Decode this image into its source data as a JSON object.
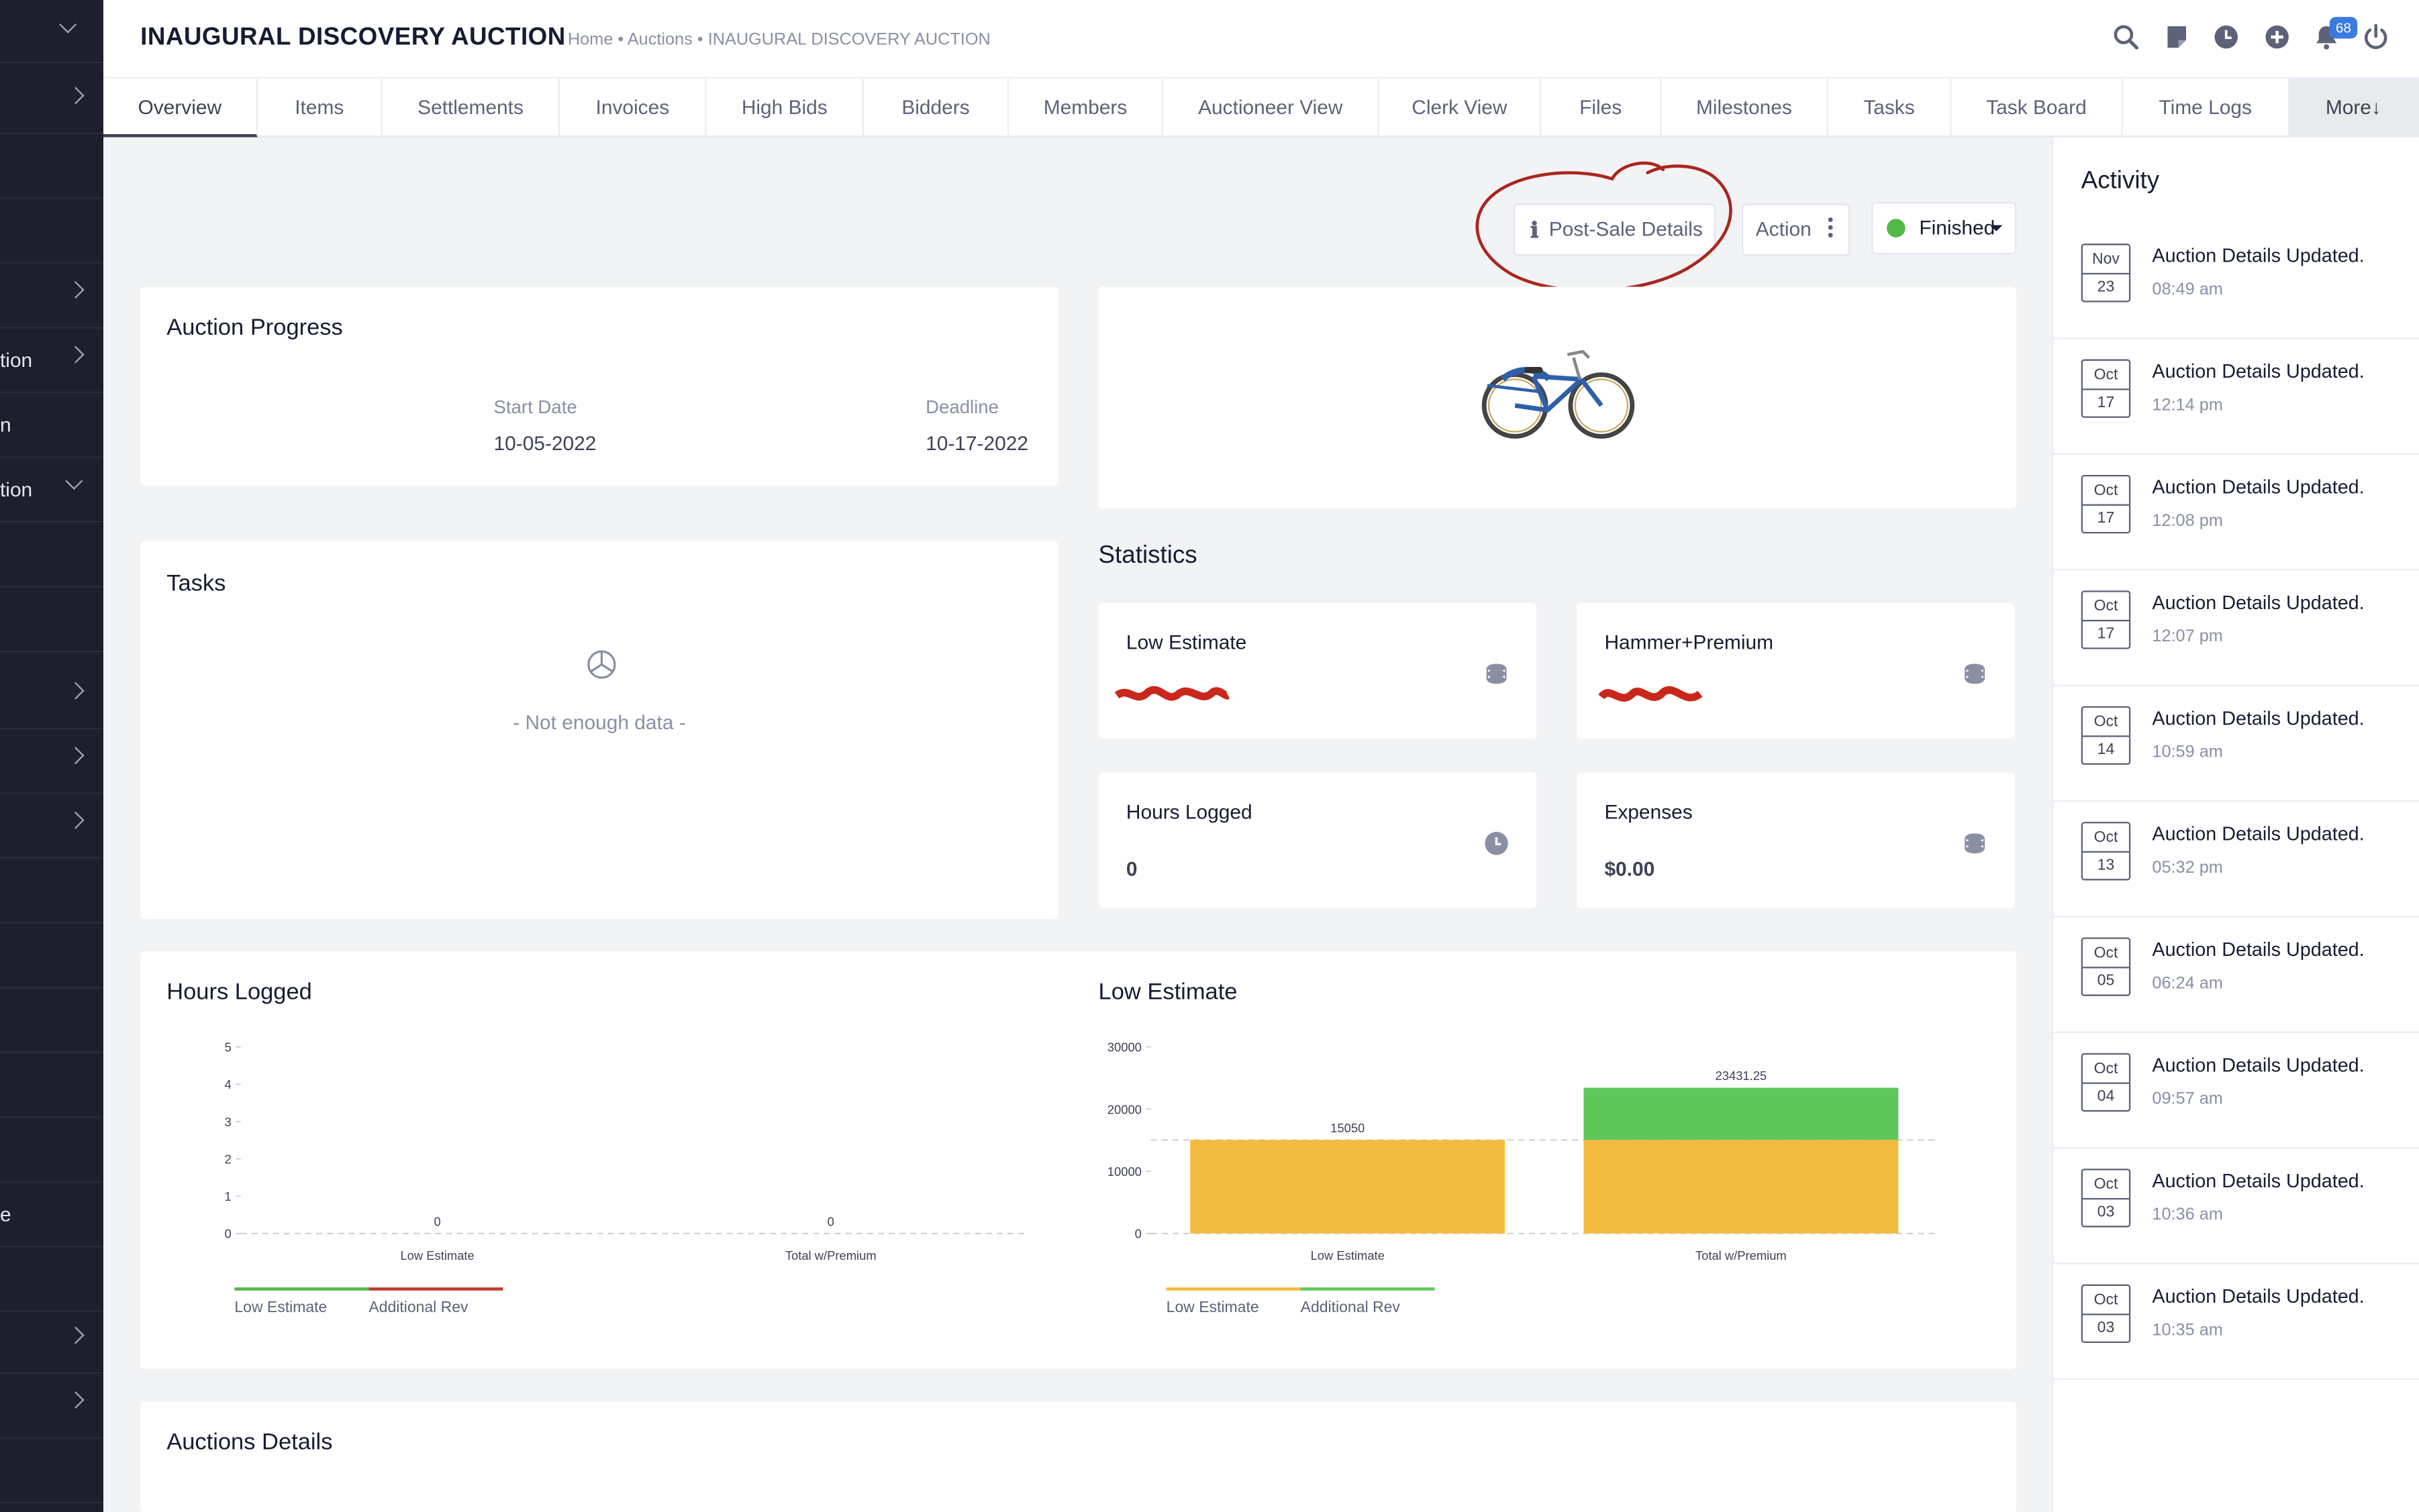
{
  "header": {
    "title": "INAUGURAL DISCOVERY AUCTION",
    "breadcrumb": [
      "Home",
      "Auctions",
      "INAUGURAL DISCOVERY AUCTION"
    ],
    "notification_count": "68"
  },
  "sidebar": {
    "items": [
      {
        "label": ""
      },
      {
        "label": ""
      },
      {
        "label": ""
      },
      {
        "label": "tion"
      },
      {
        "label": "n"
      },
      {
        "label": "tion"
      },
      {
        "label": "e"
      }
    ]
  },
  "tabs": [
    "Overview",
    "Items",
    "Settlements",
    "Invoices",
    "High Bids",
    "Bidders",
    "Members",
    "Auctioneer View",
    "Clerk View",
    "Files",
    "Milestones",
    "Tasks",
    "Task Board",
    "Time Logs",
    "More↓"
  ],
  "toolbar": {
    "post_sale": "Post-Sale Details",
    "action": "Action",
    "status": "Finished",
    "status_color": "#50b948"
  },
  "progress": {
    "title": "Auction Progress",
    "start_label": "Start Date",
    "start_value": "10-05-2022",
    "deadline_label": "Deadline",
    "deadline_value": "10-17-2022"
  },
  "tasks": {
    "title": "Tasks",
    "empty": "- Not enough data -"
  },
  "statistics": {
    "title": "Statistics",
    "low_estimate": "Low Estimate",
    "hammer_premium": "Hammer+Premium",
    "hours_logged": "Hours Logged",
    "hours_value": "0",
    "expenses": "Expenses",
    "expenses_value": "$0.00"
  },
  "activity": {
    "title": "Activity",
    "items": [
      {
        "month": "Nov",
        "day": "23",
        "msg": "Auction Details Updated.",
        "time": "08:49 am"
      },
      {
        "month": "Oct",
        "day": "17",
        "msg": "Auction Details Updated.",
        "time": "12:14 pm"
      },
      {
        "month": "Oct",
        "day": "17",
        "msg": "Auction Details Updated.",
        "time": "12:08 pm"
      },
      {
        "month": "Oct",
        "day": "17",
        "msg": "Auction Details Updated.",
        "time": "12:07 pm"
      },
      {
        "month": "Oct",
        "day": "14",
        "msg": "Auction Details Updated.",
        "time": "10:59 am"
      },
      {
        "month": "Oct",
        "day": "13",
        "msg": "Auction Details Updated.",
        "time": "05:32 pm"
      },
      {
        "month": "Oct",
        "day": "05",
        "msg": "Auction Details Updated.",
        "time": "06:24 am"
      },
      {
        "month": "Oct",
        "day": "04",
        "msg": "Auction Details Updated.",
        "time": "09:57 am"
      },
      {
        "month": "Oct",
        "day": "03",
        "msg": "Auction Details Updated.",
        "time": "10:36 am"
      },
      {
        "month": "Oct",
        "day": "03",
        "msg": "Auction Details Updated.",
        "time": "10:35 am"
      }
    ]
  },
  "details": {
    "title": "Auctions Details"
  },
  "chart_data": [
    {
      "type": "bar",
      "title": "Hours Logged",
      "categories": [
        "Low Estimate",
        "Total w/Premium"
      ],
      "series": [
        {
          "name": "Low Estimate",
          "values": [
            0,
            0
          ],
          "color": "#50b948"
        },
        {
          "name": "Additional Rev",
          "values": [
            0,
            0
          ],
          "color": "#c0392b"
        }
      ],
      "data_labels": [
        "0",
        "0"
      ],
      "yticks": [
        "0",
        "1",
        "2",
        "3",
        "4",
        "5"
      ],
      "ylim": [
        0,
        5
      ]
    },
    {
      "type": "bar",
      "title": "Low Estimate",
      "categories": [
        "Low Estimate",
        "Total w/Premium"
      ],
      "series": [
        {
          "name": "Low Estimate",
          "values": [
            15050,
            15050
          ],
          "color": "#f2bc40"
        },
        {
          "name": "Additional Rev",
          "values": [
            0,
            8381.25
          ],
          "color": "#5fc75a"
        }
      ],
      "data_labels": [
        "15050",
        "23431.25"
      ],
      "yticks": [
        "0",
        "10000",
        "20000",
        "30000"
      ],
      "ylim": [
        0,
        30000
      ],
      "reference_line": 15050
    }
  ]
}
